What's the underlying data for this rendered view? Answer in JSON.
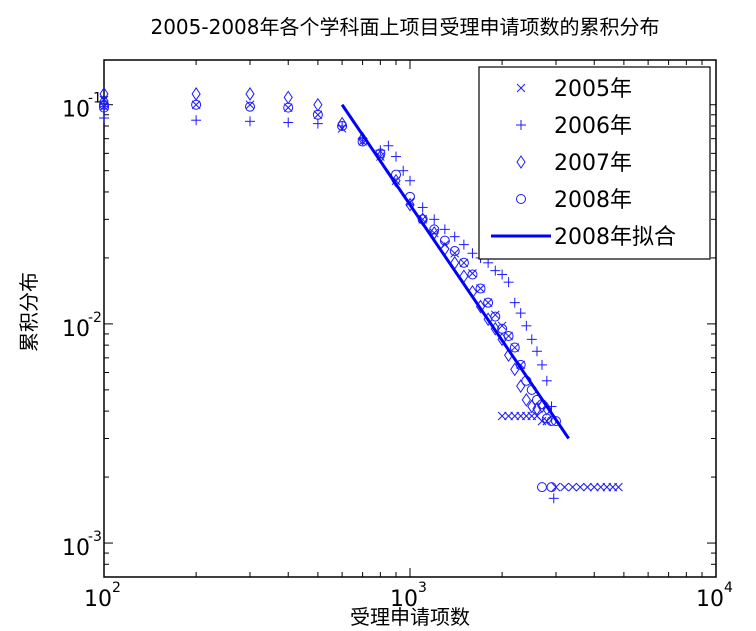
{
  "chart_data": {
    "type": "scatter",
    "title": "2005-2008年各个学科面上项目受理申请项数的累积分布",
    "xlabel": "受理申请项数",
    "ylabel": "累积分布",
    "xscale": "log",
    "yscale": "log",
    "xlim": [
      100,
      10000
    ],
    "ylim": [
      0.0007,
      0.16
    ],
    "grid": false,
    "legend_position": "top-right",
    "xticks": [
      {
        "value": 100,
        "base": "10",
        "exp": "2"
      },
      {
        "value": 1000,
        "base": "10",
        "exp": "3"
      },
      {
        "value": 10000,
        "base": "10",
        "exp": "4"
      }
    ],
    "yticks": [
      {
        "value": 0.001,
        "base": "10",
        "exp": "-3"
      },
      {
        "value": 0.01,
        "base": "10",
        "exp": "-2"
      },
      {
        "value": 0.1,
        "base": "10",
        "exp": "-1"
      }
    ],
    "series": [
      {
        "name": "2005年",
        "marker": "x",
        "color": "#1a1aff",
        "points": [
          [
            100,
            0.105
          ],
          [
            100,
            0.098
          ],
          [
            200,
            0.1
          ],
          [
            300,
            0.1
          ],
          [
            400,
            0.097
          ],
          [
            500,
            0.09
          ],
          [
            600,
            0.078
          ],
          [
            700,
            0.068
          ],
          [
            800,
            0.058
          ],
          [
            900,
            0.045
          ],
          [
            1000,
            0.036
          ],
          [
            1100,
            0.03
          ],
          [
            1200,
            0.026
          ],
          [
            1300,
            0.023
          ],
          [
            1400,
            0.021
          ],
          [
            1500,
            0.019
          ],
          [
            1600,
            0.017
          ],
          [
            1700,
            0.0145
          ],
          [
            1800,
            0.0125
          ],
          [
            1900,
            0.011
          ],
          [
            2000,
            0.0098
          ],
          [
            2100,
            0.0088
          ],
          [
            2200,
            0.0078
          ],
          [
            2300,
            0.0065
          ],
          [
            2000,
            0.0038
          ],
          [
            2100,
            0.0038
          ],
          [
            2200,
            0.0038
          ],
          [
            2300,
            0.0038
          ],
          [
            2400,
            0.0038
          ],
          [
            2500,
            0.0038
          ],
          [
            2600,
            0.0038
          ],
          [
            2700,
            0.0036
          ],
          [
            2800,
            0.0036
          ],
          [
            3000,
            0.0018
          ],
          [
            3200,
            0.0018
          ],
          [
            3400,
            0.0018
          ],
          [
            3600,
            0.0018
          ],
          [
            3800,
            0.0018
          ],
          [
            4000,
            0.0018
          ],
          [
            4200,
            0.0018
          ],
          [
            4400,
            0.0018
          ],
          [
            4600,
            0.0018
          ],
          [
            4800,
            0.0018
          ]
        ]
      },
      {
        "name": "2006年",
        "marker": "+",
        "color": "#1a1aff",
        "points": [
          [
            100,
            0.098
          ],
          [
            100,
            0.087
          ],
          [
            200,
            0.085
          ],
          [
            300,
            0.084
          ],
          [
            400,
            0.083
          ],
          [
            500,
            0.082
          ],
          [
            600,
            0.08
          ],
          [
            700,
            0.07
          ],
          [
            800,
            0.062
          ],
          [
            850,
            0.065
          ],
          [
            900,
            0.058
          ],
          [
            950,
            0.05
          ],
          [
            1000,
            0.045
          ],
          [
            1100,
            0.034
          ],
          [
            1200,
            0.03
          ],
          [
            1300,
            0.027
          ],
          [
            1400,
            0.025
          ],
          [
            1500,
            0.023
          ],
          [
            1600,
            0.021
          ],
          [
            1700,
            0.02
          ],
          [
            1800,
            0.019
          ],
          [
            1900,
            0.0175
          ],
          [
            2000,
            0.0168
          ],
          [
            2100,
            0.0155
          ],
          [
            2200,
            0.0125
          ],
          [
            2300,
            0.0112
          ],
          [
            2400,
            0.0098
          ],
          [
            2500,
            0.0085
          ],
          [
            2600,
            0.0075
          ],
          [
            2700,
            0.0065
          ],
          [
            2800,
            0.0055
          ],
          [
            2900,
            0.0042
          ],
          [
            2950,
            0.0016
          ]
        ]
      },
      {
        "name": "2007年",
        "marker": "diamond",
        "color": "#1a1aff",
        "points": [
          [
            100,
            0.112
          ],
          [
            100,
            0.104
          ],
          [
            200,
            0.112
          ],
          [
            300,
            0.112
          ],
          [
            400,
            0.108
          ],
          [
            500,
            0.1
          ],
          [
            600,
            0.082
          ],
          [
            700,
            0.07
          ],
          [
            800,
            0.058
          ],
          [
            900,
            0.045
          ],
          [
            1000,
            0.035
          ],
          [
            1100,
            0.03
          ],
          [
            1200,
            0.026
          ],
          [
            1300,
            0.022
          ],
          [
            1400,
            0.019
          ],
          [
            1500,
            0.0165
          ],
          [
            1600,
            0.014
          ],
          [
            1700,
            0.012
          ],
          [
            1800,
            0.0105
          ],
          [
            1900,
            0.0095
          ],
          [
            2000,
            0.0085
          ],
          [
            2100,
            0.0072
          ],
          [
            2200,
            0.0062
          ],
          [
            2300,
            0.0052
          ],
          [
            2400,
            0.0045
          ],
          [
            2500,
            0.0042
          ],
          [
            2600,
            0.0041
          ],
          [
            2700,
            0.0042
          ],
          [
            2800,
            0.0041
          ]
        ]
      },
      {
        "name": "2008年",
        "marker": "circle",
        "color": "#1a1aff",
        "points": [
          [
            100,
            0.1
          ],
          [
            100,
            0.097
          ],
          [
            200,
            0.1
          ],
          [
            300,
            0.098
          ],
          [
            400,
            0.097
          ],
          [
            500,
            0.09
          ],
          [
            600,
            0.08
          ],
          [
            700,
            0.068
          ],
          [
            800,
            0.06
          ],
          [
            900,
            0.048
          ],
          [
            1000,
            0.038
          ],
          [
            1100,
            0.03
          ],
          [
            1200,
            0.027
          ],
          [
            1300,
            0.024
          ],
          [
            1400,
            0.0215
          ],
          [
            1500,
            0.019
          ],
          [
            1600,
            0.0168
          ],
          [
            1700,
            0.0145
          ],
          [
            1800,
            0.0125
          ],
          [
            1900,
            0.0108
          ],
          [
            2000,
            0.0095
          ],
          [
            2100,
            0.0088
          ],
          [
            2200,
            0.0078
          ],
          [
            2300,
            0.0065
          ],
          [
            2400,
            0.0055
          ],
          [
            2500,
            0.005
          ],
          [
            2600,
            0.0045
          ],
          [
            2700,
            0.0043
          ],
          [
            2800,
            0.0037
          ],
          [
            2900,
            0.0036
          ],
          [
            3000,
            0.0036
          ],
          [
            2700,
            0.0018
          ],
          [
            2900,
            0.0018
          ]
        ]
      },
      {
        "name": "2008年拟合",
        "marker": "line",
        "color": "#0000ff",
        "points": [
          [
            600,
            0.1
          ],
          [
            3300,
            0.003
          ]
        ]
      }
    ]
  }
}
